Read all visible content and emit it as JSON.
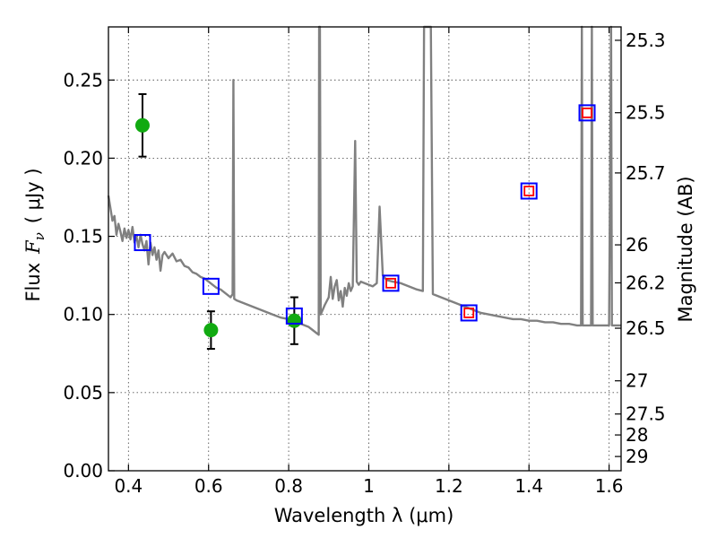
{
  "chart_data": {
    "type": "scatter",
    "xlabel": "Wavelength  λ (μm)",
    "ylabel_prefix": "Flux",
    "ylabel_symbol": "F",
    "ylabel_subscript": "ν",
    "ylabel_unit": "( μJy )",
    "y2label": "Magnitude (AB)",
    "xlim": [
      0.35,
      1.63
    ],
    "ylim": [
      0.0,
      0.284
    ],
    "grid": true,
    "x_ticks": [
      {
        "value": 0.4,
        "label": "0.4"
      },
      {
        "value": 0.6,
        "label": "0.6"
      },
      {
        "value": 0.8,
        "label": "0.8"
      },
      {
        "value": 1.0,
        "label": "1"
      },
      {
        "value": 1.2,
        "label": "1.2"
      },
      {
        "value": 1.4,
        "label": "1.4"
      },
      {
        "value": 1.6,
        "label": "1.6"
      }
    ],
    "y_ticks": [
      {
        "value": 0.0,
        "label": "0.00"
      },
      {
        "value": 0.05,
        "label": "0.05"
      },
      {
        "value": 0.1,
        "label": "0.10"
      },
      {
        "value": 0.15,
        "label": "0.15"
      },
      {
        "value": 0.2,
        "label": "0.20"
      },
      {
        "value": 0.25,
        "label": "0.25"
      }
    ],
    "mag_ticks": [
      {
        "value": 25.3,
        "label": "25.3"
      },
      {
        "value": 25.5,
        "label": "25.5"
      },
      {
        "value": 25.7,
        "label": "25.7"
      },
      {
        "value": 26.0,
        "label": "26"
      },
      {
        "value": 26.2,
        "label": "26.2"
      },
      {
        "value": 26.5,
        "label": "26.5"
      },
      {
        "value": 27.0,
        "label": "27"
      },
      {
        "value": 27.5,
        "label": "27.5"
      },
      {
        "value": 28.0,
        "label": "28"
      },
      {
        "value": 29.0,
        "label": "29"
      }
    ],
    "colors": {
      "observed": "#11aa11",
      "errorbar": "#000000",
      "model_square": "#0000ff",
      "model_inner_square": "#ff0000",
      "sed": "#808080",
      "grid": "#555555"
    },
    "observed_points": [
      {
        "x": 0.435,
        "y": 0.221,
        "err": 0.02
      },
      {
        "x": 0.606,
        "y": 0.09,
        "err": 0.012
      },
      {
        "x": 0.814,
        "y": 0.096,
        "err": 0.015
      }
    ],
    "model_points": [
      {
        "x": 0.435,
        "y": 0.146,
        "inner": false
      },
      {
        "x": 0.606,
        "y": 0.118,
        "inner": false
      },
      {
        "x": 0.814,
        "y": 0.099,
        "inner": false
      },
      {
        "x": 1.055,
        "y": 0.12,
        "inner": true
      },
      {
        "x": 1.25,
        "y": 0.101,
        "inner": true
      },
      {
        "x": 1.4,
        "y": 0.179,
        "inner": true
      },
      {
        "x": 1.545,
        "y": 0.229,
        "inner": true
      }
    ],
    "sed_curve": [
      [
        0.35,
        0.176
      ],
      [
        0.355,
        0.168
      ],
      [
        0.36,
        0.16
      ],
      [
        0.365,
        0.163
      ],
      [
        0.37,
        0.151
      ],
      [
        0.375,
        0.158
      ],
      [
        0.38,
        0.153
      ],
      [
        0.385,
        0.147
      ],
      [
        0.39,
        0.155
      ],
      [
        0.395,
        0.149
      ],
      [
        0.4,
        0.154
      ],
      [
        0.405,
        0.148
      ],
      [
        0.41,
        0.156
      ],
      [
        0.415,
        0.146
      ],
      [
        0.42,
        0.15
      ],
      [
        0.425,
        0.143
      ],
      [
        0.43,
        0.151
      ],
      [
        0.435,
        0.145
      ],
      [
        0.44,
        0.141
      ],
      [
        0.445,
        0.147
      ],
      [
        0.45,
        0.132
      ],
      [
        0.455,
        0.146
      ],
      [
        0.46,
        0.138
      ],
      [
        0.465,
        0.143
      ],
      [
        0.47,
        0.135
      ],
      [
        0.475,
        0.141
      ],
      [
        0.48,
        0.128
      ],
      [
        0.485,
        0.138
      ],
      [
        0.49,
        0.14
      ],
      [
        0.5,
        0.136
      ],
      [
        0.51,
        0.139
      ],
      [
        0.52,
        0.134
      ],
      [
        0.53,
        0.135
      ],
      [
        0.54,
        0.131
      ],
      [
        0.55,
        0.13
      ],
      [
        0.56,
        0.127
      ],
      [
        0.57,
        0.126
      ],
      [
        0.58,
        0.124
      ],
      [
        0.59,
        0.123
      ],
      [
        0.6,
        0.121
      ],
      [
        0.61,
        0.119
      ],
      [
        0.62,
        0.117
      ],
      [
        0.63,
        0.116
      ],
      [
        0.64,
        0.114
      ],
      [
        0.645,
        0.113
      ],
      [
        0.65,
        0.112
      ],
      [
        0.655,
        0.111
      ],
      [
        0.66,
        0.113
      ],
      [
        0.662,
        0.25
      ],
      [
        0.664,
        0.11
      ],
      [
        0.67,
        0.109
      ],
      [
        0.68,
        0.108
      ],
      [
        0.7,
        0.106
      ],
      [
        0.72,
        0.104
      ],
      [
        0.74,
        0.102
      ],
      [
        0.76,
        0.1
      ],
      [
        0.78,
        0.098
      ],
      [
        0.8,
        0.097
      ],
      [
        0.815,
        0.096
      ],
      [
        0.82,
        0.097
      ],
      [
        0.83,
        0.094
      ],
      [
        0.84,
        0.093
      ],
      [
        0.85,
        0.092
      ],
      [
        0.86,
        0.09
      ],
      [
        0.87,
        0.088
      ],
      [
        0.875,
        0.087
      ],
      [
        0.876,
        0.284
      ],
      [
        0.878,
        0.284
      ],
      [
        0.88,
        0.1
      ],
      [
        0.89,
        0.106
      ],
      [
        0.9,
        0.111
      ],
      [
        0.905,
        0.124
      ],
      [
        0.91,
        0.11
      ],
      [
        0.915,
        0.118
      ],
      [
        0.92,
        0.122
      ],
      [
        0.925,
        0.109
      ],
      [
        0.93,
        0.115
      ],
      [
        0.935,
        0.105
      ],
      [
        0.94,
        0.117
      ],
      [
        0.945,
        0.112
      ],
      [
        0.95,
        0.12
      ],
      [
        0.955,
        0.115
      ],
      [
        0.96,
        0.118
      ],
      [
        0.966,
        0.211
      ],
      [
        0.97,
        0.121
      ],
      [
        0.975,
        0.119
      ],
      [
        0.98,
        0.121
      ],
      [
        0.99,
        0.12
      ],
      [
        1.0,
        0.119
      ],
      [
        1.01,
        0.118
      ],
      [
        1.02,
        0.12
      ],
      [
        1.027,
        0.169
      ],
      [
        1.035,
        0.125
      ],
      [
        1.045,
        0.122
      ],
      [
        1.06,
        0.121
      ],
      [
        1.08,
        0.12
      ],
      [
        1.1,
        0.118
      ],
      [
        1.12,
        0.116
      ],
      [
        1.135,
        0.115
      ],
      [
        1.138,
        0.284
      ],
      [
        1.155,
        0.284
      ],
      [
        1.16,
        0.113
      ],
      [
        1.18,
        0.111
      ],
      [
        1.2,
        0.109
      ],
      [
        1.22,
        0.107
      ],
      [
        1.24,
        0.105
      ],
      [
        1.26,
        0.103
      ],
      [
        1.28,
        0.101
      ],
      [
        1.3,
        0.1
      ],
      [
        1.32,
        0.099
      ],
      [
        1.34,
        0.098
      ],
      [
        1.36,
        0.097
      ],
      [
        1.38,
        0.097
      ],
      [
        1.4,
        0.096
      ],
      [
        1.42,
        0.096
      ],
      [
        1.44,
        0.095
      ],
      [
        1.46,
        0.095
      ],
      [
        1.48,
        0.094
      ],
      [
        1.5,
        0.094
      ],
      [
        1.52,
        0.093
      ],
      [
        1.53,
        0.093
      ],
      [
        1.532,
        0.284
      ],
      [
        1.534,
        0.093
      ],
      [
        1.555,
        0.093
      ],
      [
        1.557,
        0.284
      ],
      [
        1.559,
        0.093
      ],
      [
        1.575,
        0.093
      ],
      [
        1.585,
        0.093
      ],
      [
        1.59,
        0.093
      ],
      [
        1.595,
        0.093
      ],
      [
        1.6,
        0.093
      ],
      [
        1.605,
        0.284
      ],
      [
        1.607,
        0.093
      ],
      [
        1.62,
        0.093
      ],
      [
        1.63,
        0.093
      ]
    ]
  }
}
